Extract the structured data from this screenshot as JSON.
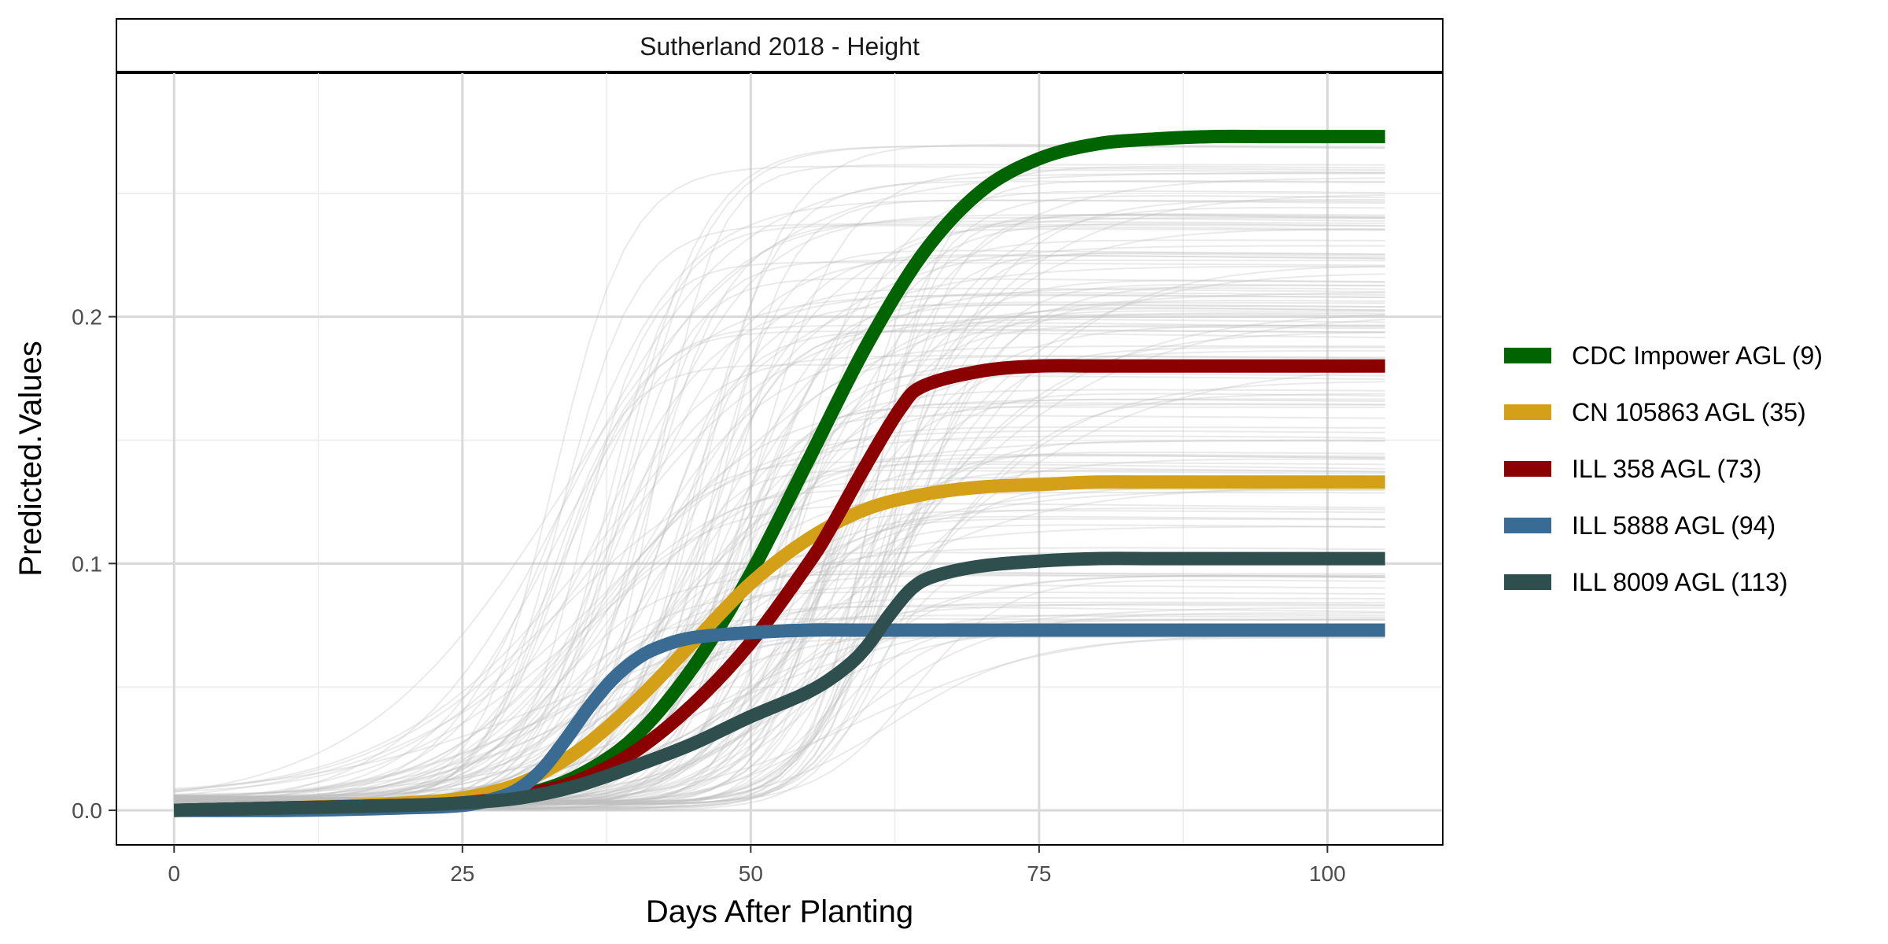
{
  "chart_data": {
    "type": "line",
    "title": "Sutherland 2018 - Height",
    "xlabel": "Days After Planting",
    "ylabel": "Predicted.Values",
    "xlim": [
      -5,
      110
    ],
    "ylim": [
      -0.014,
      0.299
    ],
    "x_ticks": [
      0,
      25,
      50,
      75,
      100
    ],
    "x_tick_labels": [
      "0",
      "25",
      "50",
      "75",
      "100"
    ],
    "y_ticks": [
      0.0,
      0.1,
      0.2
    ],
    "y_tick_labels": [
      "0.0",
      "0.1",
      "0.2"
    ],
    "grid": true,
    "legend_position": "right",
    "background_series": {
      "description_hidden": true,
      "color": "#bdbdbd",
      "count": 160
    },
    "series": [
      {
        "name": "CDC Impower AGL (9)",
        "color": "#006400",
        "x": [
          0,
          10,
          20,
          25,
          30,
          35,
          40,
          45,
          50,
          55,
          60,
          65,
          70,
          75,
          80,
          85,
          90,
          95,
          100,
          105
        ],
        "values": [
          0.0,
          0.001,
          0.002,
          0.003,
          0.006,
          0.014,
          0.03,
          0.058,
          0.096,
          0.142,
          0.188,
          0.226,
          0.251,
          0.264,
          0.27,
          0.272,
          0.273,
          0.273,
          0.273,
          0.273
        ]
      },
      {
        "name": "CN 105863 AGL (35)",
        "color": "#D4A017",
        "x": [
          0,
          10,
          20,
          25,
          30,
          35,
          40,
          45,
          50,
          55,
          60,
          65,
          70,
          75,
          80,
          85,
          90,
          95,
          100,
          105
        ],
        "values": [
          0.0,
          0.001,
          0.003,
          0.005,
          0.011,
          0.024,
          0.044,
          0.068,
          0.092,
          0.11,
          0.122,
          0.128,
          0.131,
          0.132,
          0.133,
          0.133,
          0.133,
          0.133,
          0.133,
          0.133
        ]
      },
      {
        "name": "ILL 358 AGL (73)",
        "color": "#8B0000",
        "x": [
          0,
          10,
          20,
          25,
          30,
          35,
          40,
          45,
          50,
          55,
          57,
          60,
          63,
          65,
          70,
          75,
          80,
          85,
          90,
          95,
          100,
          105
        ],
        "values": [
          0.0,
          0.001,
          0.002,
          0.003,
          0.006,
          0.012,
          0.024,
          0.043,
          0.068,
          0.1,
          0.115,
          0.14,
          0.163,
          0.172,
          0.178,
          0.18,
          0.18,
          0.18,
          0.18,
          0.18,
          0.18,
          0.18
        ]
      },
      {
        "name": "ILL 5888 AGL (94)",
        "color": "#3A6B93",
        "x": [
          0,
          10,
          20,
          25,
          28,
          30,
          32,
          34,
          36,
          38,
          40,
          42,
          45,
          50,
          55,
          60,
          70,
          80,
          90,
          100,
          105
        ],
        "values": [
          0.0,
          0.0,
          0.001,
          0.002,
          0.005,
          0.009,
          0.017,
          0.029,
          0.042,
          0.053,
          0.061,
          0.066,
          0.07,
          0.072,
          0.073,
          0.073,
          0.073,
          0.073,
          0.073,
          0.073,
          0.073
        ]
      },
      {
        "name": "ILL 8009 AGL (113)",
        "color": "#2F4F4F",
        "x": [
          0,
          10,
          20,
          25,
          30,
          35,
          40,
          45,
          50,
          55,
          58,
          60,
          62,
          64,
          66,
          70,
          75,
          80,
          85,
          90,
          95,
          100,
          105
        ],
        "values": [
          0.0,
          0.001,
          0.002,
          0.003,
          0.005,
          0.01,
          0.018,
          0.027,
          0.038,
          0.048,
          0.057,
          0.066,
          0.079,
          0.09,
          0.095,
          0.099,
          0.101,
          0.102,
          0.102,
          0.102,
          0.102,
          0.102,
          0.102
        ]
      }
    ]
  }
}
